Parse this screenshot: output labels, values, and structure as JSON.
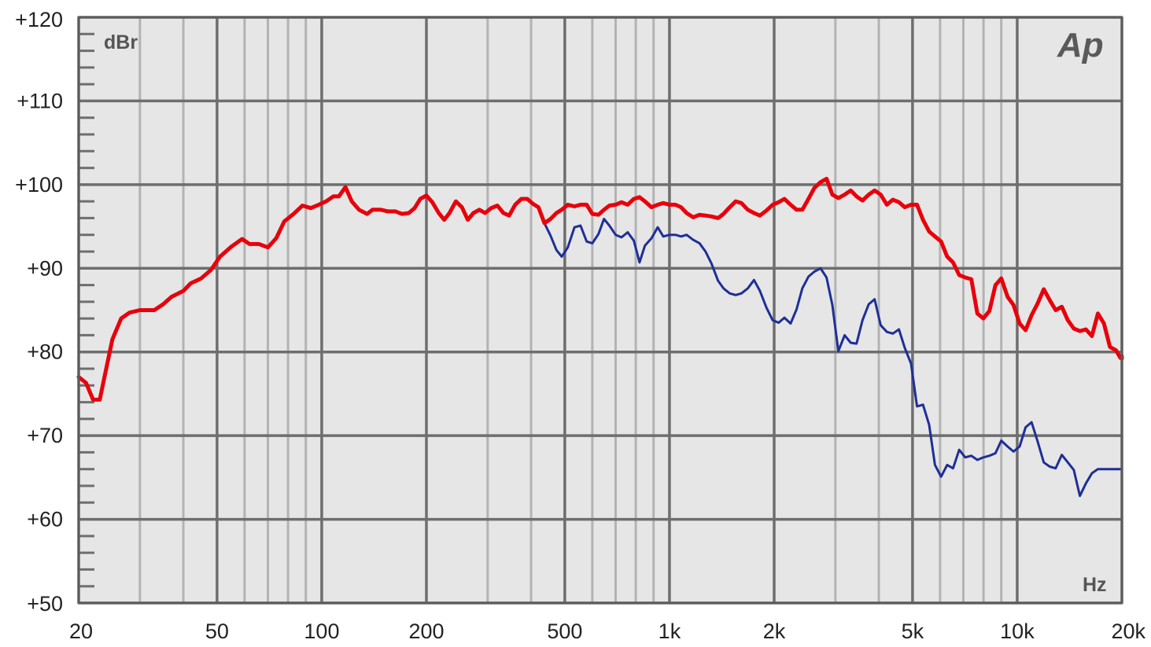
{
  "chart_data": {
    "type": "line",
    "xscale": "log",
    "xlim": [
      20,
      20000
    ],
    "ylim": [
      50,
      120
    ],
    "ylabel": "dBr",
    "xlabel": "Hz",
    "grid": true,
    "logo": "Ap",
    "y_ticks": [
      {
        "value": 120,
        "label": "+120"
      },
      {
        "value": 110,
        "label": "+110"
      },
      {
        "value": 100,
        "label": "+100"
      },
      {
        "value": 90,
        "label": "+90"
      },
      {
        "value": 80,
        "label": "+80"
      },
      {
        "value": 70,
        "label": "+70"
      },
      {
        "value": 60,
        "label": "+60"
      },
      {
        "value": 50,
        "label": "+50"
      }
    ],
    "x_ticks": [
      {
        "value": 20,
        "label": "20"
      },
      {
        "value": 50,
        "label": "50"
      },
      {
        "value": 100,
        "label": "100"
      },
      {
        "value": 200,
        "label": "200"
      },
      {
        "value": 500,
        "label": "500"
      },
      {
        "value": 1000,
        "label": "1k"
      },
      {
        "value": 2000,
        "label": "2k"
      },
      {
        "value": 5000,
        "label": "5k"
      },
      {
        "value": 10000,
        "label": "10k"
      },
      {
        "value": 20000,
        "label": "20k"
      }
    ],
    "series": [
      {
        "color": "#e8000b",
        "width": 5,
        "points": [
          [
            20,
            77
          ],
          [
            21,
            76.3
          ],
          [
            22,
            74.3
          ],
          [
            23,
            74.3
          ],
          [
            24,
            78
          ],
          [
            25,
            81.5
          ],
          [
            26.5,
            84
          ],
          [
            28,
            84.7
          ],
          [
            30,
            85
          ],
          [
            33,
            85
          ],
          [
            35,
            85.7
          ],
          [
            37,
            86.6
          ],
          [
            40,
            87.3
          ],
          [
            42,
            88.2
          ],
          [
            45,
            88.8
          ],
          [
            48,
            89.8
          ],
          [
            51,
            91.4
          ],
          [
            55,
            92.6
          ],
          [
            59,
            93.5
          ],
          [
            62,
            92.9
          ],
          [
            66,
            92.9
          ],
          [
            70,
            92.5
          ],
          [
            74,
            93.6
          ],
          [
            78,
            95.6
          ],
          [
            83,
            96.5
          ],
          [
            88,
            97.5
          ],
          [
            93,
            97.2
          ],
          [
            98,
            97.6
          ],
          [
            103,
            98
          ],
          [
            108,
            98.6
          ],
          [
            112,
            98.6
          ],
          [
            117,
            99.7
          ],
          [
            122,
            98
          ],
          [
            128,
            97
          ],
          [
            135,
            96.5
          ],
          [
            140,
            97
          ],
          [
            148,
            97
          ],
          [
            155,
            96.8
          ],
          [
            163,
            96.8
          ],
          [
            170,
            96.5
          ],
          [
            178,
            96.6
          ],
          [
            185,
            97.2
          ],
          [
            192,
            98.3
          ],
          [
            200,
            98.7
          ],
          [
            208,
            97.9
          ],
          [
            217,
            96.6
          ],
          [
            225,
            95.8
          ],
          [
            233,
            96.6
          ],
          [
            243,
            98
          ],
          [
            253,
            97.3
          ],
          [
            263,
            95.8
          ],
          [
            273,
            96.6
          ],
          [
            284,
            97
          ],
          [
            295,
            96.6
          ],
          [
            307,
            97.2
          ],
          [
            320,
            97.5
          ],
          [
            333,
            96.6
          ],
          [
            346,
            96.3
          ],
          [
            360,
            97.6
          ],
          [
            375,
            98.3
          ],
          [
            390,
            98.3
          ],
          [
            405,
            97.7
          ],
          [
            420,
            97.3
          ],
          [
            437,
            95.4
          ],
          [
            455,
            95.9
          ],
          [
            473,
            96.6
          ],
          [
            490,
            97
          ],
          [
            510,
            97.6
          ],
          [
            533,
            97.4
          ],
          [
            555,
            97.6
          ],
          [
            578,
            97.6
          ],
          [
            600,
            96.5
          ],
          [
            625,
            96.4
          ],
          [
            648,
            97
          ],
          [
            672,
            97.5
          ],
          [
            700,
            97.6
          ],
          [
            728,
            97.9
          ],
          [
            758,
            97.6
          ],
          [
            790,
            98.3
          ],
          [
            820,
            98.5
          ],
          [
            850,
            98
          ],
          [
            888,
            97.3
          ],
          [
            925,
            97.6
          ],
          [
            960,
            97.8
          ],
          [
            1000,
            97.6
          ],
          [
            1040,
            97.6
          ],
          [
            1080,
            97.3
          ],
          [
            1120,
            96.6
          ],
          [
            1170,
            96.1
          ],
          [
            1220,
            96.4
          ],
          [
            1270,
            96.3
          ],
          [
            1320,
            96.2
          ],
          [
            1380,
            96
          ],
          [
            1430,
            96.5
          ],
          [
            1490,
            97.3
          ],
          [
            1550,
            98
          ],
          [
            1610,
            97.8
          ],
          [
            1680,
            97
          ],
          [
            1750,
            96.6
          ],
          [
            1820,
            96.3
          ],
          [
            1900,
            96.9
          ],
          [
            1980,
            97.6
          ],
          [
            2060,
            97.9
          ],
          [
            2140,
            98.3
          ],
          [
            2230,
            97.6
          ],
          [
            2320,
            97
          ],
          [
            2410,
            97
          ],
          [
            2510,
            98.3
          ],
          [
            2610,
            99.6
          ],
          [
            2720,
            100.3
          ],
          [
            2830,
            100.7
          ],
          [
            2940,
            98.8
          ],
          [
            3060,
            98.4
          ],
          [
            3190,
            98.8
          ],
          [
            3320,
            99.3
          ],
          [
            3450,
            98.6
          ],
          [
            3590,
            98.1
          ],
          [
            3740,
            98.8
          ],
          [
            3890,
            99.3
          ],
          [
            4050,
            98.8
          ],
          [
            4220,
            97.6
          ],
          [
            4390,
            98.2
          ],
          [
            4570,
            97.9
          ],
          [
            4750,
            97.3
          ],
          [
            4950,
            97.6
          ],
          [
            5150,
            97.6
          ],
          [
            5360,
            95.8
          ],
          [
            5580,
            94.4
          ],
          [
            5800,
            93.8
          ],
          [
            6040,
            93.2
          ],
          [
            6290,
            91.4
          ],
          [
            6540,
            90.7
          ],
          [
            6810,
            89.2
          ],
          [
            7090,
            88.9
          ],
          [
            7380,
            88.7
          ],
          [
            7680,
            84.6
          ],
          [
            7990,
            84
          ],
          [
            8320,
            84.9
          ],
          [
            8660,
            88
          ],
          [
            9000,
            88.8
          ],
          [
            9380,
            86.6
          ],
          [
            9760,
            85.6
          ],
          [
            10160,
            83.4
          ],
          [
            10570,
            82.6
          ],
          [
            11000,
            84.4
          ],
          [
            11450,
            85.8
          ],
          [
            11920,
            87.5
          ],
          [
            12400,
            86.2
          ],
          [
            12900,
            85
          ],
          [
            13430,
            85.4
          ],
          [
            13980,
            83.8
          ],
          [
            14550,
            82.8
          ],
          [
            15140,
            82.5
          ],
          [
            15760,
            82.7
          ],
          [
            16400,
            81.9
          ],
          [
            17060,
            84.6
          ],
          [
            17760,
            83.4
          ],
          [
            18480,
            80.6
          ],
          [
            19230,
            80.2
          ],
          [
            19800,
            79.3
          ],
          [
            20000,
            79.5
          ],
          [
            20000,
            79.2
          ]
        ]
      },
      {
        "color": "#1e2f96",
        "width": 3,
        "points": [
          [
            437,
            95.4
          ],
          [
            455,
            93.9
          ],
          [
            473,
            92.2
          ],
          [
            490,
            91.4
          ],
          [
            510,
            92.5
          ],
          [
            533,
            94.9
          ],
          [
            555,
            95.1
          ],
          [
            578,
            93.2
          ],
          [
            600,
            93
          ],
          [
            625,
            94.1
          ],
          [
            648,
            95.9
          ],
          [
            672,
            95.1
          ],
          [
            700,
            94
          ],
          [
            728,
            93.7
          ],
          [
            758,
            94.3
          ],
          [
            790,
            93.3
          ],
          [
            820,
            90.7
          ],
          [
            850,
            92.7
          ],
          [
            888,
            93.6
          ],
          [
            925,
            94.9
          ],
          [
            960,
            93.8
          ],
          [
            1000,
            94
          ],
          [
            1040,
            94
          ],
          [
            1080,
            93.8
          ],
          [
            1120,
            94
          ],
          [
            1170,
            93.4
          ],
          [
            1220,
            93
          ],
          [
            1270,
            92
          ],
          [
            1320,
            90.6
          ],
          [
            1380,
            88.5
          ],
          [
            1430,
            87.6
          ],
          [
            1490,
            87
          ],
          [
            1550,
            86.8
          ],
          [
            1610,
            87
          ],
          [
            1680,
            87.6
          ],
          [
            1750,
            88.6
          ],
          [
            1820,
            87.3
          ],
          [
            1900,
            85.3
          ],
          [
            1980,
            83.8
          ],
          [
            2060,
            83.5
          ],
          [
            2140,
            84.1
          ],
          [
            2230,
            83.4
          ],
          [
            2320,
            85.1
          ],
          [
            2410,
            87.6
          ],
          [
            2510,
            89
          ],
          [
            2610,
            89.6
          ],
          [
            2720,
            90
          ],
          [
            2830,
            88.9
          ],
          [
            2940,
            85.6
          ],
          [
            3060,
            80.1
          ],
          [
            3190,
            82
          ],
          [
            3320,
            81.1
          ],
          [
            3450,
            81
          ],
          [
            3590,
            83.8
          ],
          [
            3740,
            85.7
          ],
          [
            3890,
            86.3
          ],
          [
            4050,
            83.2
          ],
          [
            4220,
            82.4
          ],
          [
            4390,
            82.2
          ],
          [
            4570,
            82.7
          ],
          [
            4750,
            80.5
          ],
          [
            4950,
            78.6
          ],
          [
            5150,
            73.5
          ],
          [
            5360,
            73.7
          ],
          [
            5580,
            71.3
          ],
          [
            5800,
            66.5
          ],
          [
            6040,
            65.1
          ],
          [
            6290,
            66.5
          ],
          [
            6540,
            66.1
          ],
          [
            6810,
            68.3
          ],
          [
            7090,
            67.4
          ],
          [
            7380,
            67.6
          ],
          [
            7680,
            67.1
          ],
          [
            7990,
            67.4
          ],
          [
            8320,
            67.6
          ],
          [
            8660,
            67.9
          ],
          [
            9000,
            69.4
          ],
          [
            9380,
            68.7
          ],
          [
            9760,
            68.1
          ],
          [
            10160,
            68.7
          ],
          [
            10570,
            71
          ],
          [
            11000,
            71.6
          ],
          [
            11450,
            69.3
          ],
          [
            11920,
            66.8
          ],
          [
            12400,
            66.3
          ],
          [
            12900,
            66.1
          ],
          [
            13430,
            67.7
          ],
          [
            13980,
            66.8
          ],
          [
            14550,
            65.9
          ],
          [
            15140,
            62.8
          ],
          [
            15760,
            64.3
          ],
          [
            16400,
            65.5
          ],
          [
            17060,
            66
          ],
          [
            20000,
            66
          ]
        ]
      }
    ]
  }
}
